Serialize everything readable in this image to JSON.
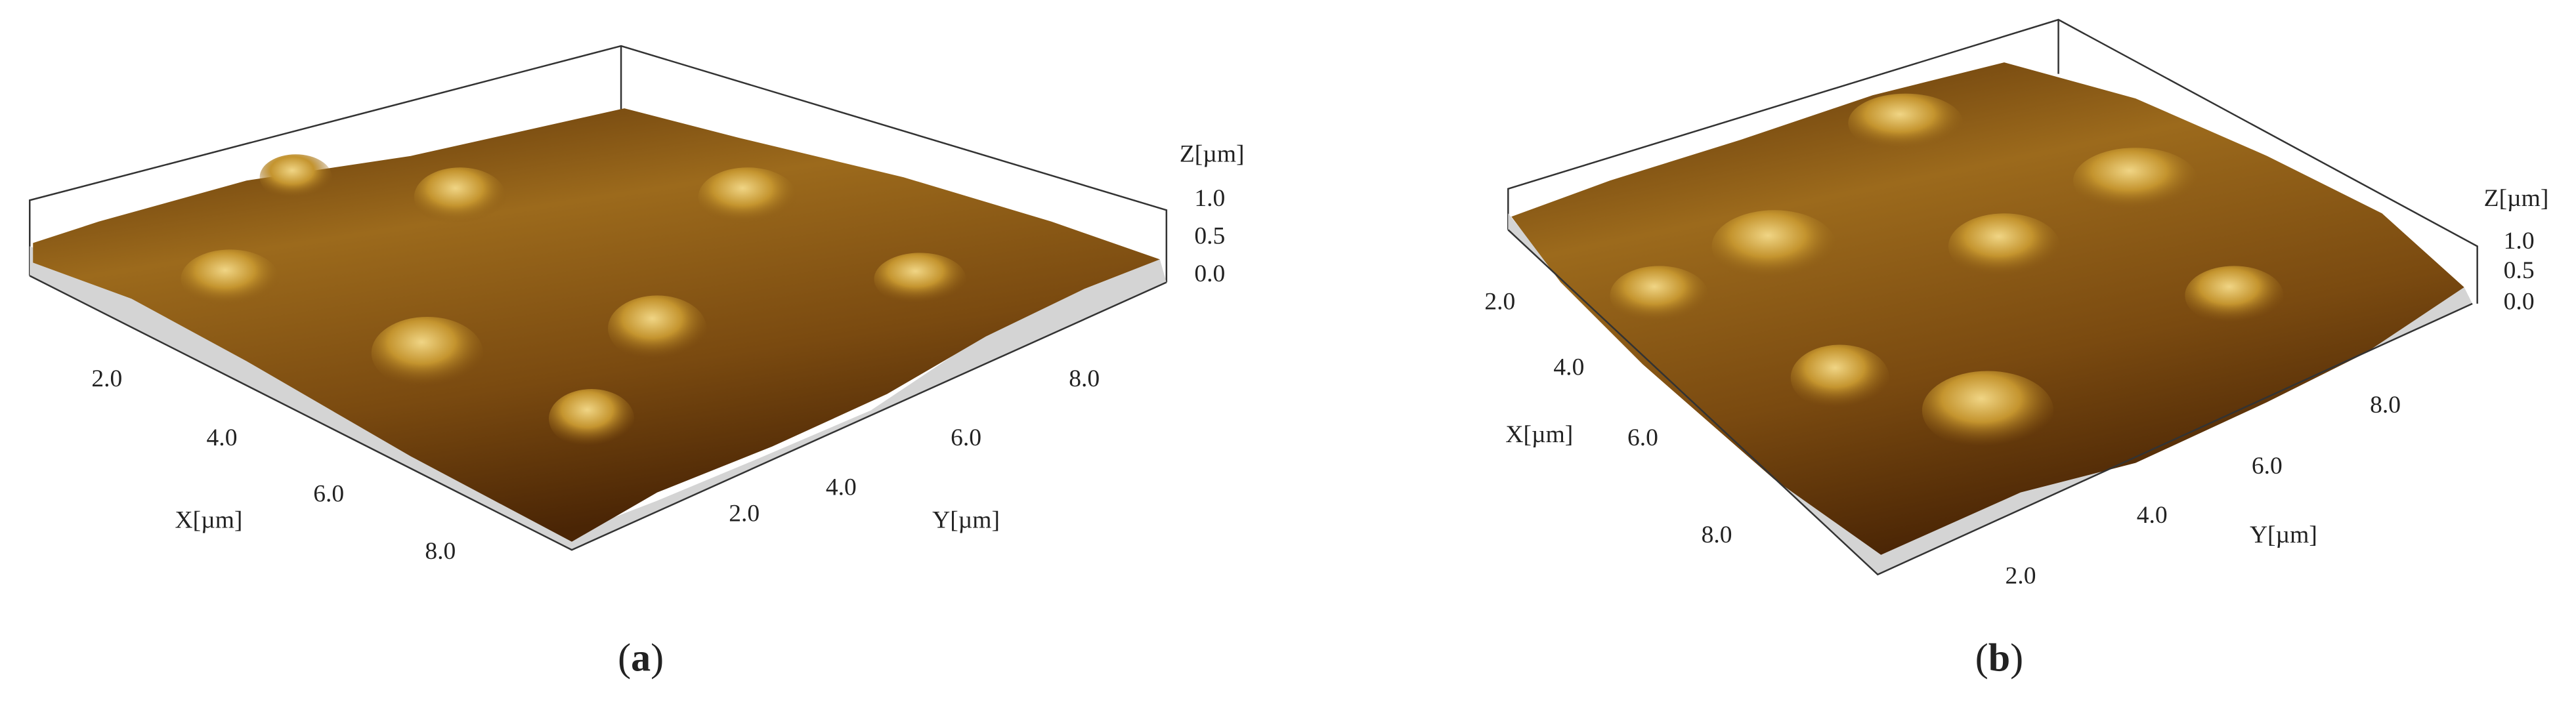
{
  "panels": [
    {
      "caption": [
        "(",
        "a",
        ")"
      ],
      "x_axis": {
        "label": "X[µm]",
        "ticks": [
          "2.0",
          "4.0",
          "6.0",
          "8.0"
        ]
      },
      "y_axis": {
        "label": "Y[µm]",
        "ticks": [
          "2.0",
          "4.0",
          "6.0",
          "8.0"
        ]
      },
      "z_axis": {
        "label": "Z[µm]",
        "ticks": [
          "0.0",
          "0.5",
          "1.0"
        ]
      }
    },
    {
      "caption": [
        "(",
        "b",
        ")"
      ],
      "x_axis": {
        "label": "X[µm]",
        "ticks": [
          "2.0",
          "4.0",
          "6.0",
          "8.0"
        ]
      },
      "y_axis": {
        "label": "Y[µm]",
        "ticks": [
          "2.0",
          "4.0",
          "6.0",
          "8.0"
        ]
      },
      "z_axis": {
        "label": "Z[µm]",
        "ticks": [
          "0.0",
          "0.5",
          "1.0"
        ]
      }
    }
  ]
}
